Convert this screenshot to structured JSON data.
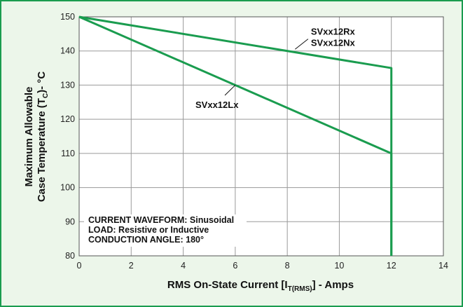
{
  "chart_data": {
    "type": "line",
    "xlabel": {
      "main": "RMS On-State Current [I",
      "sub": "T(RMS)",
      "suffix": "] - Amps"
    },
    "ylabel": {
      "line1": "Maximum Allowable",
      "line2_main": "Case Temperature (T",
      "line2_sub": "C",
      "line2_suffix": ")- °C"
    },
    "xlim": [
      0,
      14
    ],
    "ylim": [
      80,
      150
    ],
    "x_ticks": [
      "0",
      "2",
      "4",
      "6",
      "8",
      "10",
      "12",
      "14"
    ],
    "y_ticks": [
      "80",
      "90",
      "100",
      "110",
      "120",
      "130",
      "140",
      "150"
    ],
    "grid": true,
    "series": [
      {
        "name": "SVxx12Rx / SVxx12Nx",
        "x": [
          0,
          12,
          12
        ],
        "y": [
          150,
          135,
          80
        ]
      },
      {
        "name": "SVxx12Lx",
        "x": [
          0,
          12,
          12
        ],
        "y": [
          150,
          110,
          80
        ]
      }
    ],
    "annotations": [
      {
        "lines": [
          "SVxx12Rx",
          "SVxx12Nx"
        ],
        "leader_from": [
          8.3,
          140.5
        ],
        "leader_to": [
          8.8,
          143.5
        ]
      },
      {
        "lines": [
          "SVxx12Lx"
        ],
        "leader_from": [
          6.0,
          130
        ],
        "leader_to": [
          5.6,
          127
        ]
      }
    ],
    "notes": [
      "CURRENT WAVEFORM: Sinusoidal",
      "LOAD: Resistive or Inductive",
      "CONDUCTION ANGLE: 180°"
    ]
  },
  "colors": {
    "line": "#1a9c4f",
    "frame": "#1a9c4f",
    "background": "#ecf6ea",
    "plot_background": "#ffffff",
    "grid": "#9a9a9a"
  }
}
